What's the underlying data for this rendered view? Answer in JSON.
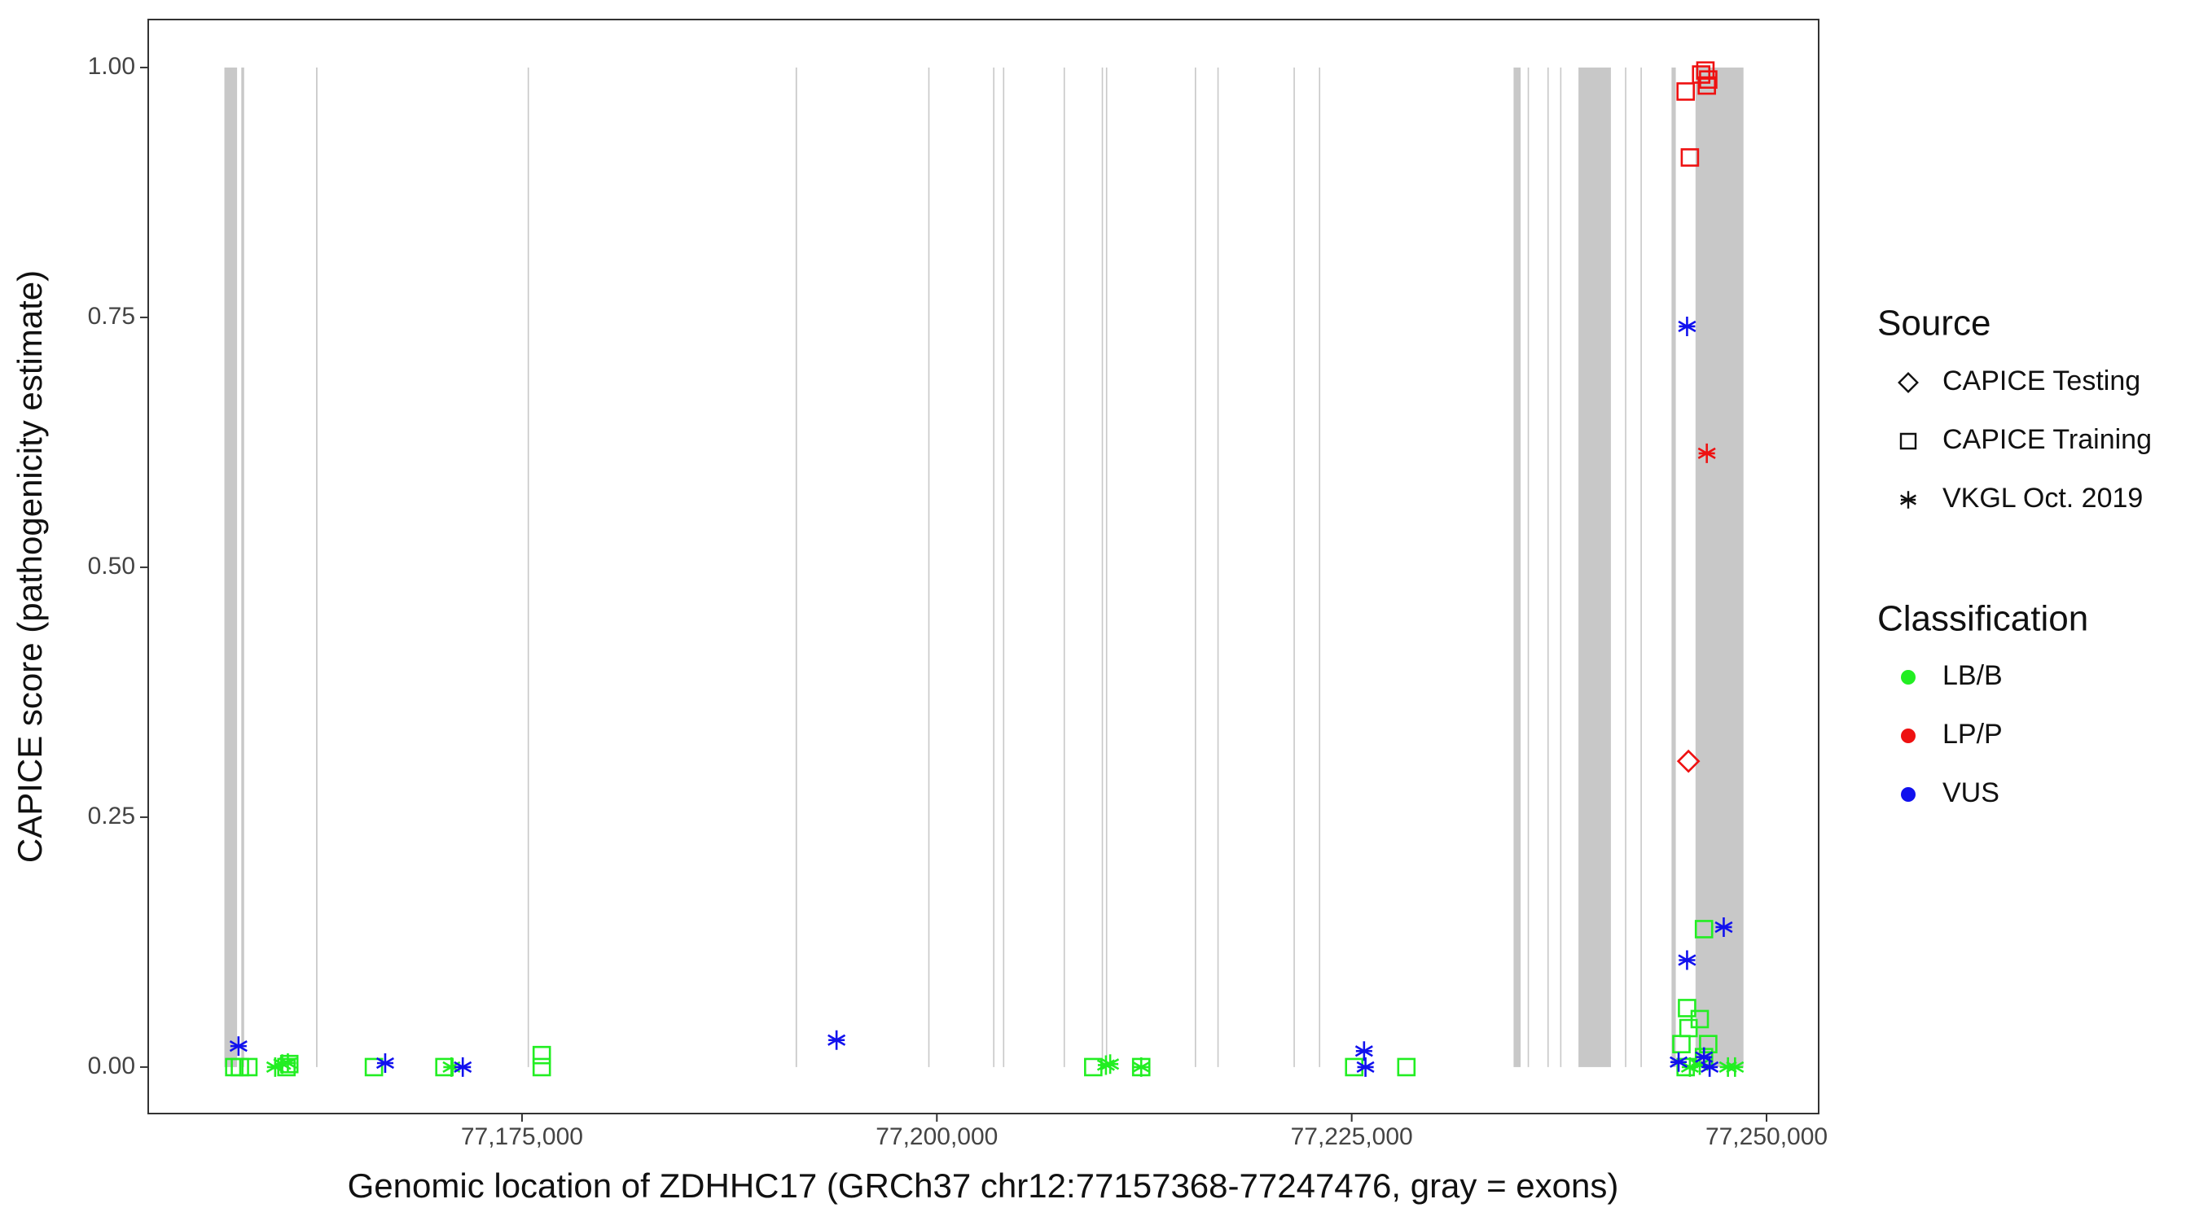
{
  "chart_data": {
    "type": "scatter",
    "xlabel": "Genomic location of ZDHHC17 (GRCh37 chr12:77157368-77247476, gray = exons)",
    "ylabel": "CAPICE score (pathogenicity estimate)",
    "xlim": [
      77152475,
      77253140
    ],
    "ylim": [
      -0.0465,
      1.048
    ],
    "xticks": [
      {
        "value": 77175000,
        "label": "77,175,000"
      },
      {
        "value": 77200000,
        "label": "77,200,000"
      },
      {
        "value": 77225000,
        "label": "77,225,000"
      },
      {
        "value": 77250000,
        "label": "77,250,000"
      }
    ],
    "yticks": [
      {
        "value": 0,
        "label": "0.00"
      },
      {
        "value": 0.25,
        "label": "0.25"
      },
      {
        "value": 0.5,
        "label": "0.50"
      },
      {
        "value": 0.75,
        "label": "0.75"
      },
      {
        "value": 1,
        "label": "1.00"
      }
    ],
    "exon_color": "#c8c8c8",
    "exon_top": 1,
    "exon_bottom": 0,
    "exons": [
      [
        77157065,
        77157830
      ],
      [
        77158085,
        77158255
      ],
      [
        77162590,
        77162675
      ],
      [
        77175340,
        77175400
      ],
      [
        77191490,
        77191575
      ],
      [
        77199480,
        77199540
      ],
      [
        77203390,
        77203450
      ],
      [
        77203985,
        77204045
      ],
      [
        77207640,
        77207700
      ],
      [
        77209935,
        77209995
      ],
      [
        77210190,
        77210250
      ],
      [
        77215545,
        77215605
      ],
      [
        77216905,
        77216965
      ],
      [
        77221495,
        77221555
      ],
      [
        77223025,
        77223085
      ],
      [
        77234755,
        77235180
      ],
      [
        77235605,
        77235665
      ],
      [
        77236795,
        77236855
      ],
      [
        77237560,
        77237620
      ],
      [
        77238665,
        77240620
      ],
      [
        77241470,
        77241530
      ],
      [
        77242405,
        77242465
      ],
      [
        77244275,
        77244530
      ],
      [
        77245720,
        77248610
      ]
    ],
    "legend": {
      "source": {
        "title": "Source",
        "entries": [
          {
            "name": "CAPICE Testing",
            "shape": "diamond"
          },
          {
            "name": "CAPICE Training",
            "shape": "square"
          },
          {
            "name": "VKGL Oct. 2019",
            "shape": "asterisk"
          }
        ]
      },
      "classification": {
        "title": "Classification",
        "entries": [
          {
            "name": "LB/B",
            "color": "#22ee22"
          },
          {
            "name": "LP/P",
            "color": "#ee1111"
          },
          {
            "name": "VUS",
            "color": "#1111ee"
          }
        ]
      }
    },
    "series": [
      {
        "source": "CAPICE Training",
        "classification": "LB/B",
        "x": [
          77157660,
          77158000,
          77158510,
          77160805,
          77160975,
          77166075,
          77170325,
          77176190,
          77176190,
          77209425,
          77212315,
          77225150,
          77228295,
          77244870,
          77245210,
          77245295,
          77245975,
          77246230,
          77246485,
          77246230,
          77245125
        ],
        "values": [
          0,
          0,
          0,
          0,
          0.003,
          0,
          0,
          0.012,
          0,
          0,
          0,
          0,
          0,
          0.023,
          0.059,
          0.039,
          0.048,
          0.138,
          0.023,
          0.01,
          0
        ]
      },
      {
        "source": "VKGL Oct. 2019",
        "classification": "LB/B",
        "x": [
          77160125,
          77160550,
          77160890,
          77170750,
          77210190,
          77210445,
          77212315,
          77245380,
          77245975,
          77247675,
          77248100
        ],
        "values": [
          0,
          0.003,
          0.004,
          0,
          0.002,
          0.003,
          0,
          0,
          0.002,
          0,
          0
        ]
      },
      {
        "source": "CAPICE Training",
        "classification": "LP/P",
        "x": [
          77245125,
          77245380,
          77246060,
          77246315,
          77246485,
          77246400
        ],
        "values": [
          0.976,
          0.91,
          0.993,
          0.997,
          0.988,
          0.982
        ]
      },
      {
        "source": "VKGL Oct. 2019",
        "classification": "LP/P",
        "x": [
          77246400
        ],
        "values": [
          0.614
        ]
      },
      {
        "source": "CAPICE Testing",
        "classification": "LP/P",
        "x": [
          77245295
        ],
        "values": [
          0.306
        ]
      },
      {
        "source": "VKGL Oct. 2019",
        "classification": "VUS",
        "x": [
          77157915,
          77166755,
          77171430,
          77193955,
          77225745,
          77225830,
          77244700,
          77245210,
          77245210,
          77247420,
          77246230,
          77246570
        ],
        "values": [
          0.021,
          0.004,
          0,
          0.027,
          0.016,
          0,
          0.005,
          0.741,
          0.107,
          0.14,
          0.01,
          0
        ]
      }
    ]
  }
}
